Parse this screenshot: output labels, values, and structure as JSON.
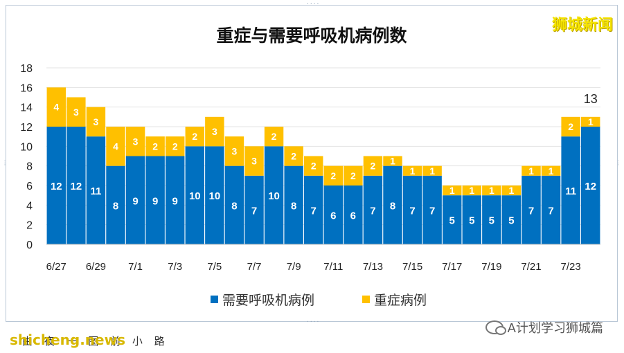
{
  "brand": "狮城新闻",
  "footer": {
    "watermark": "shicheng.news",
    "underline_text": "由 夜 一 图 前 小 路",
    "wechat_text": "A计划学习狮城篇"
  },
  "colors": {
    "series1": "#0070c0",
    "series2": "#ffc000",
    "label_dark": "#ffffff",
    "label_light": "#ffffff"
  },
  "chart_data": {
    "type": "bar",
    "stacked": true,
    "title": "重症与需要呼吸机病例数",
    "categories": [
      "6/27",
      "6/28",
      "6/29",
      "6/30",
      "7/1",
      "7/2",
      "7/3",
      "7/4",
      "7/5",
      "7/6",
      "7/7",
      "7/8",
      "7/9",
      "7/10",
      "7/11",
      "7/12",
      "7/13",
      "7/14",
      "7/15",
      "7/16",
      "7/17",
      "7/18",
      "7/19",
      "7/20",
      "7/21",
      "7/22",
      "7/23",
      "7/24"
    ],
    "tick_labels": [
      "6/27",
      "",
      "6/29",
      "",
      "7/1",
      "",
      "7/3",
      "",
      "7/5",
      "",
      "7/7",
      "",
      "7/9",
      "",
      "7/11",
      "",
      "7/13",
      "",
      "7/15",
      "",
      "7/17",
      "",
      "7/19",
      "",
      "7/21",
      "",
      "7/23",
      ""
    ],
    "series": [
      {
        "name": "需要呼吸机病例",
        "values": [
          12,
          12,
          11,
          8,
          9,
          9,
          9,
          10,
          10,
          8,
          7,
          10,
          8,
          7,
          6,
          6,
          7,
          8,
          7,
          7,
          5,
          5,
          5,
          5,
          7,
          7,
          11,
          12
        ]
      },
      {
        "name": "重症病例",
        "values": [
          4,
          3,
          3,
          4,
          3,
          2,
          2,
          2,
          3,
          3,
          3,
          2,
          2,
          2,
          2,
          2,
          2,
          1,
          1,
          1,
          1,
          1,
          1,
          1,
          1,
          1,
          2,
          1
        ]
      }
    ],
    "total_annotation": {
      "category": "7/24",
      "text": "13"
    },
    "ylim": [
      0,
      18
    ],
    "yticks": [
      0,
      2,
      4,
      6,
      8,
      10,
      12,
      14,
      16,
      18
    ],
    "grid": true,
    "legend_position": "bottom"
  }
}
